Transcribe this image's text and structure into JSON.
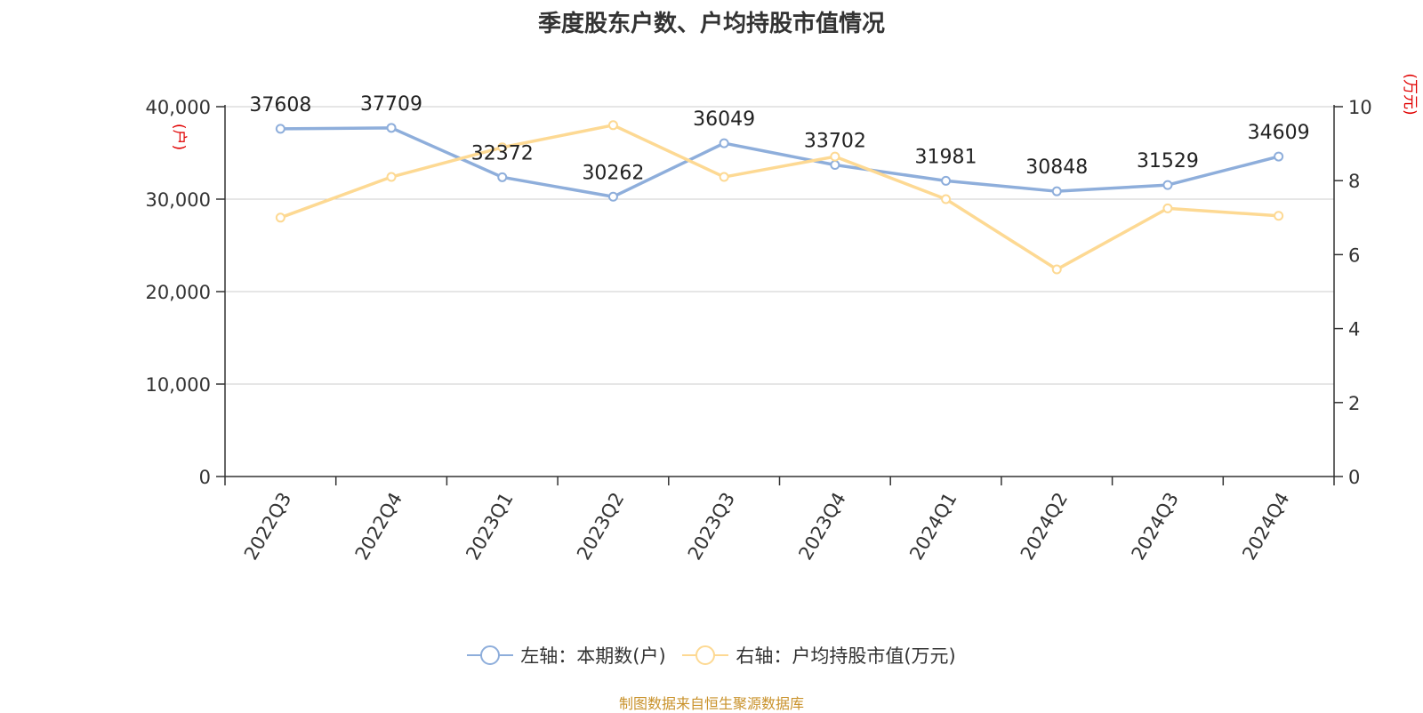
{
  "title": "季度股东户数、户均持股市值情况",
  "legend": {
    "left_label": "左轴：本期数(户)",
    "right_label": "右轴：户均持股市值(万元)"
  },
  "footer": "制图数据来自恒生聚源数据库",
  "colors": {
    "series_left": "#8eaedb",
    "series_right": "#fdd993",
    "unit_label": "#e00000",
    "grid": "#cccccc",
    "axis": "#333333"
  },
  "chart_data": {
    "type": "line",
    "categories": [
      "2022Q3",
      "2022Q4",
      "2023Q1",
      "2023Q2",
      "2023Q3",
      "2023Q4",
      "2024Q1",
      "2024Q2",
      "2024Q3",
      "2024Q4"
    ],
    "y_left": {
      "unit": "(户)",
      "ylim": [
        0,
        40000
      ],
      "ticks": [
        "0",
        "10,000",
        "20,000",
        "30,000",
        "40,000"
      ],
      "tick_values": [
        0,
        10000,
        20000,
        30000,
        40000
      ]
    },
    "y_right": {
      "unit": "(万元)",
      "ylim": [
        0,
        10
      ],
      "ticks": [
        "0",
        "2",
        "4",
        "6",
        "8",
        "10"
      ],
      "tick_values": [
        0,
        2,
        4,
        6,
        8,
        10
      ]
    },
    "grid": true,
    "legend_position": "bottom",
    "series": [
      {
        "name": "左轴：本期数(户)",
        "axis": "left",
        "values": [
          37608,
          37709,
          32372,
          30262,
          36049,
          33702,
          31981,
          30848,
          31529,
          34609
        ],
        "labels": [
          "37608",
          "37709",
          "32372",
          "30262",
          "36049",
          "33702",
          "31981",
          "30848",
          "31529",
          "34609"
        ]
      },
      {
        "name": "右轴：户均持股市值(万元)",
        "axis": "right",
        "values": [
          7.0,
          8.1,
          8.9,
          9.5,
          8.1,
          8.65,
          7.5,
          5.6,
          7.25,
          7.05
        ]
      }
    ]
  }
}
